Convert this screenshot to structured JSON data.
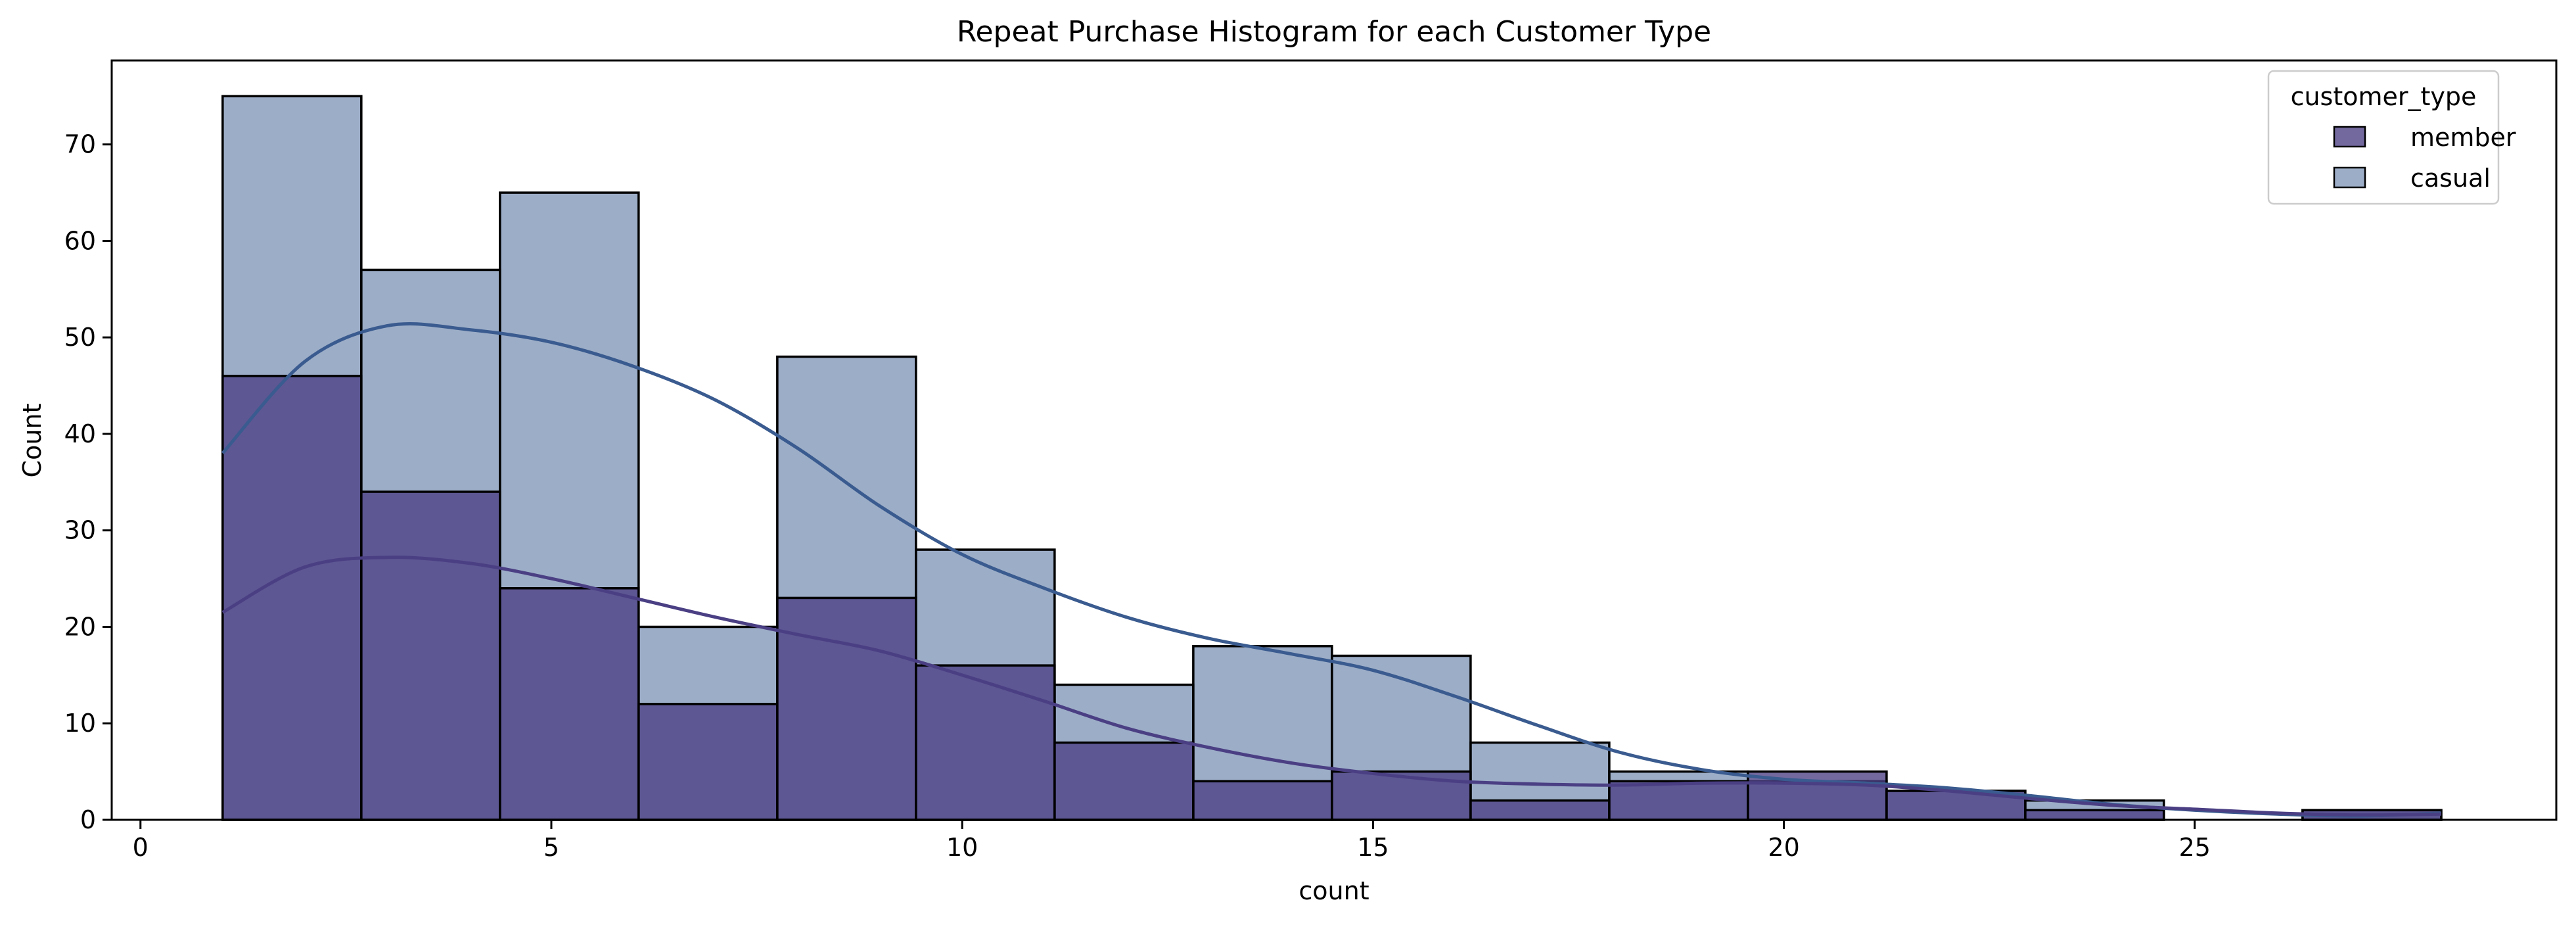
{
  "chart_data": {
    "type": "bar",
    "title": "Repeat Purchase Histogram for each Customer Type",
    "xlabel": "count",
    "ylabel": "Count",
    "xlim": [
      -0.35,
      29.4
    ],
    "ylim": [
      0,
      78.7
    ],
    "xticks": [
      0,
      5,
      10,
      15,
      20,
      25
    ],
    "yticks": [
      0,
      10,
      20,
      30,
      40,
      50,
      60,
      70
    ],
    "bin_edges": [
      1.0,
      2.6875,
      4.375,
      6.0625,
      7.75,
      9.4375,
      11.125,
      12.8125,
      14.5,
      16.1875,
      17.875,
      19.5625,
      21.25,
      22.9375,
      24.625,
      26.3125,
      28.0
    ],
    "legend": {
      "title": "customer_type",
      "position": "top-right"
    },
    "series": [
      {
        "name": "member",
        "color": "#4b3f84",
        "values": [
          46,
          34,
          24,
          12,
          23,
          16,
          8,
          4,
          5,
          2,
          4,
          5,
          3,
          1,
          0,
          1
        ],
        "kde": {
          "x": [
            1,
            2,
            3,
            4,
            5,
            6,
            7,
            8,
            9,
            10,
            11,
            12,
            13,
            14,
            15,
            16,
            17,
            18,
            19,
            20,
            21,
            22,
            23,
            24,
            25,
            26,
            27,
            28
          ],
          "y": [
            21.5,
            26.2,
            27.2,
            26.6,
            25,
            23,
            21,
            19.2,
            17.5,
            15,
            12.3,
            9.5,
            7.5,
            5.9,
            4.8,
            4,
            3.7,
            3.6,
            3.8,
            3.8,
            3.6,
            3,
            2.2,
            1.5,
            1.1,
            0.7,
            0.5,
            0.6
          ]
        }
      },
      {
        "name": "casual",
        "color": "#3a5b8f",
        "values": [
          75,
          57,
          65,
          20,
          48,
          28,
          14,
          18,
          17,
          8,
          5,
          4,
          3,
          2,
          0,
          1
        ],
        "kde": {
          "x": [
            1,
            2,
            3,
            4,
            5,
            6,
            7,
            8,
            9,
            10,
            11,
            12,
            13,
            14,
            15,
            16,
            17,
            18,
            19,
            20,
            21,
            22,
            23,
            24,
            25,
            26,
            27,
            28
          ],
          "y": [
            38,
            47.5,
            51.2,
            50.8,
            49.5,
            47,
            43.5,
            38.5,
            32.5,
            27.5,
            24,
            21,
            18.8,
            17.2,
            15.5,
            12.8,
            9.8,
            7,
            5.2,
            4.2,
            3.8,
            3.3,
            2.5,
            1.6,
            1,
            0.6,
            0.4,
            0.7
          ]
        }
      }
    ]
  }
}
